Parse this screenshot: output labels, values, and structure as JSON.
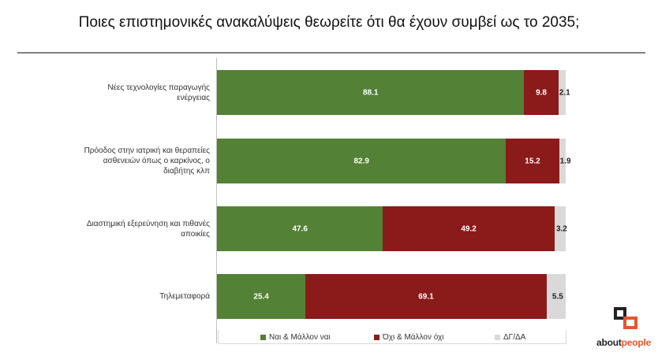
{
  "title": "Ποιες επιστημονικές ανακαλύψεις θεωρείτε ότι θα έχουν συμβεί ως το 2035;",
  "colors": {
    "yes": "#538135",
    "no": "#8b1a1a",
    "dk": "#d9d9d9"
  },
  "chart_data": {
    "type": "bar",
    "orientation": "horizontal",
    "stacked": true,
    "title": "Ποιες επιστημονικές ανακαλύψεις θεωρείτε ότι θα έχουν συμβεί ως το 2035;",
    "categories": [
      "Νέες τεχνολογίες παραγωγής ενέργειας",
      "Πρόοδος στην ιατρική και θεραπείες ασθενειών όπως ο καρκίνος, ο διαβήτης κλπ",
      "Διαστημική εξερεύνηση και πιθανές αποικίες",
      "Τηλεμεταφορά"
    ],
    "series": [
      {
        "name": "Ναι & Μάλλον ναι",
        "values": [
          88.1,
          82.9,
          47.6,
          25.4
        ]
      },
      {
        "name": "Όχι & Μάλλον όχι",
        "values": [
          9.8,
          15.2,
          49.2,
          69.1
        ]
      },
      {
        "name": "ΔΓ/ΔΑ",
        "values": [
          2.1,
          1.9,
          3.2,
          5.5
        ]
      }
    ],
    "xlim": [
      0,
      100
    ],
    "legend": "bottom",
    "grid": false
  },
  "legend": {
    "yes": "Ναι & Μάλλον ναι",
    "no": "Όχι & Μάλλον όχι",
    "dk": "ΔΓ/ΔΑ"
  },
  "logo": {
    "part1": "about",
    "part2": "people"
  }
}
